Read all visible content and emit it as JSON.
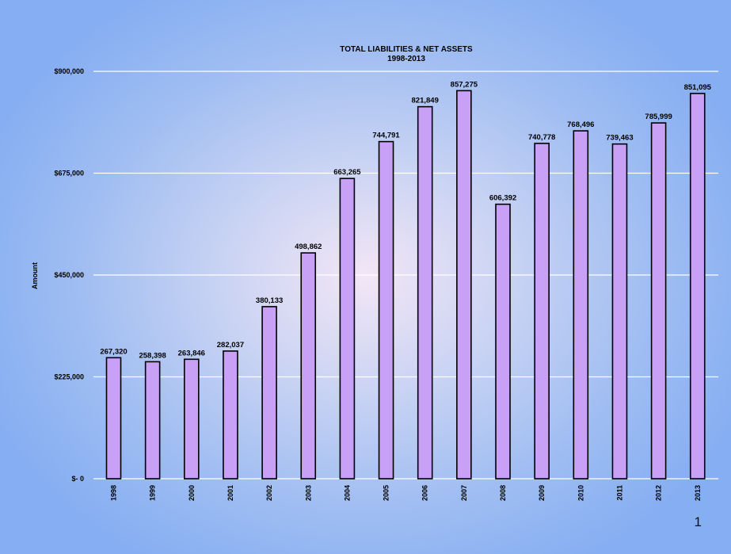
{
  "chart_data": {
    "type": "bar",
    "title": "TOTAL LIABILITIES & NET ASSETS",
    "subtitle": "1998-2013",
    "xlabel": "",
    "ylabel": "Amount",
    "categories": [
      "1998",
      "1999",
      "2000",
      "2001",
      "2002",
      "2003",
      "2004",
      "2005",
      "2006",
      "2007",
      "2008",
      "2009",
      "2010",
      "2011",
      "2012",
      "2013"
    ],
    "values": [
      267320,
      258398,
      263846,
      282037,
      380133,
      498862,
      663265,
      744791,
      821849,
      857275,
      606392,
      740778,
      768496,
      739463,
      785999,
      851095
    ],
    "value_labels": [
      "267,320",
      "258,398",
      "263,846",
      "282,037",
      "380,133",
      "498,862",
      "663,265",
      "744,791",
      "821,849",
      "857,275",
      "606,392",
      "740,778",
      "768,496",
      "739,463",
      "785,999",
      "851,095"
    ],
    "ylim": [
      0,
      900000
    ],
    "yticks": [
      0,
      225000,
      450000,
      675000,
      900000
    ],
    "ytick_labels": [
      "$- 0",
      "$225,000",
      "$450,000",
      "$675,000",
      "$900,000"
    ],
    "grid": true,
    "bar_color": "#c8a0f5"
  },
  "page_number": "1"
}
